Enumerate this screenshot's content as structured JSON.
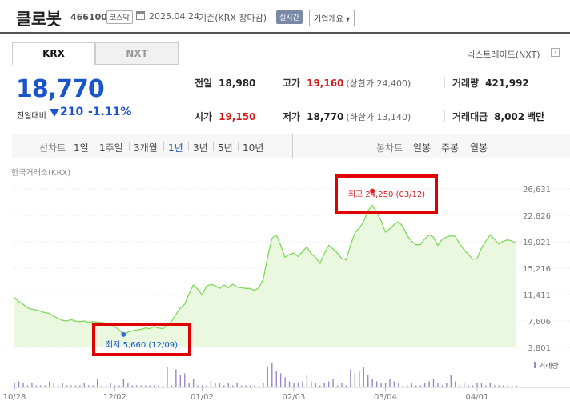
{
  "header": {
    "title": "클로봇",
    "code": "466100",
    "market": "코스닥",
    "date": "2025.04.24",
    "basis": "기준(KRX 장마감)",
    "realtime": "실시간",
    "overview": "기업개요 ▾"
  },
  "tabs": {
    "krx": "KRX",
    "nxt": "NXT"
  },
  "nxt_link": "넥스트레이드(NXT)",
  "nxt_help": "?",
  "price": {
    "current": "18,770",
    "change_label": "전일대비",
    "change": "210",
    "change_pct": "-1.11%",
    "colors": {
      "down": "#1a55c9",
      "up": "#d21d1d"
    }
  },
  "stats": {
    "prev_close": {
      "label": "전일",
      "value": "18,980"
    },
    "high": {
      "label": "고가",
      "value": "19,160",
      "sub": "(상한가 24,400)"
    },
    "volume": {
      "label": "거래량",
      "value": "421,992"
    },
    "open": {
      "label": "시가",
      "value": "19,150"
    },
    "low": {
      "label": "저가",
      "value": "18,770",
      "sub": "(하한가 13,140)"
    },
    "amount": {
      "label": "거래대금",
      "value": "8,002",
      "unit": "백만"
    }
  },
  "period_bar": {
    "line_head": "선차트",
    "line_options": [
      "1일",
      "1주일",
      "3개월",
      "1년",
      "3년",
      "5년",
      "10년"
    ],
    "active": "1년",
    "candle_head": "봉차트",
    "candle_options": [
      "일봉",
      "주봉",
      "월봉"
    ]
  },
  "chart_source": "한국거래소(KRX)",
  "chart_data": {
    "type": "area",
    "y_ticks": [
      "26,631",
      "22,826",
      "19,021",
      "15,216",
      "11,411",
      "7,606",
      "3,801"
    ],
    "ylim": [
      3801,
      26631
    ],
    "x_ticks": [
      "10/28",
      "12/02",
      "01/02",
      "02/03",
      "03/04",
      "04/01"
    ],
    "high_annotation": "최고 24,250 (03/12)",
    "low_annotation": "최저 5,660 (12/09)",
    "volume_legend": "거래량",
    "colors": {
      "line": "#7ed95a",
      "fill": "#e9f8df",
      "bars": "#9b87c9",
      "high_dot": "#e02020",
      "low_dot": "#2a6fd6"
    },
    "series": [
      {
        "values": [
          11000,
          10400,
          10000,
          9500,
          9300,
          9200,
          9000,
          8800,
          8700,
          8300,
          8000,
          7700,
          7600,
          7800,
          7600,
          7500,
          7600,
          7400,
          7500,
          7450,
          7400,
          7300,
          7200,
          6800,
          6300,
          5660,
          6000,
          6200,
          6300,
          6400,
          6600,
          6500,
          6800,
          6600,
          6500,
          7000,
          7600,
          8500,
          9500,
          10000,
          11500,
          12800,
          12200,
          11400,
          12600,
          12900,
          12700,
          12300,
          12800,
          12400,
          12900,
          12500,
          12400,
          12300,
          12300,
          12000,
          12400,
          13600,
          16800,
          19500,
          20000,
          18500,
          16800,
          17200,
          17400,
          16900,
          17600,
          18300,
          17300,
          16800,
          15900,
          17300,
          18500,
          18000,
          17400,
          16600,
          16400,
          18500,
          20300,
          21000,
          21900,
          23500,
          24250,
          23300,
          22100,
          20400,
          20900,
          21500,
          21900,
          21200,
          19900,
          19100,
          18600,
          18600,
          19400,
          20000,
          19700,
          18500,
          19400,
          19700,
          19900,
          19800,
          18700,
          17900,
          17200,
          16500,
          16600,
          18100,
          19100,
          20000,
          19400,
          18700,
          19100,
          19300,
          19100,
          18800
        ]
      }
    ],
    "volume": [
      2,
      3,
      2,
      1,
      2,
      1,
      1,
      1,
      3,
      2,
      1,
      2,
      1,
      1,
      1,
      1,
      2,
      1,
      1,
      4,
      1,
      1,
      2,
      1,
      1,
      4,
      2,
      1,
      1,
      1,
      1,
      1,
      1,
      1,
      1,
      10,
      1,
      9,
      6,
      7,
      2,
      4,
      1,
      1,
      1,
      3,
      2,
      2,
      1,
      2,
      1,
      2,
      1,
      1,
      1,
      1,
      1,
      2,
      10,
      12,
      8,
      7,
      5,
      3,
      2,
      2,
      3,
      6,
      3,
      2,
      1,
      2,
      3,
      4,
      1,
      2,
      1,
      9,
      7,
      8,
      10,
      6,
      4,
      3,
      2,
      2,
      4,
      3,
      2,
      1,
      1,
      2,
      1,
      1,
      2,
      3,
      4,
      2,
      1,
      2,
      6,
      3,
      1,
      2,
      1,
      1,
      2,
      2,
      1,
      2,
      1,
      1,
      1,
      1,
      1,
      1
    ]
  }
}
